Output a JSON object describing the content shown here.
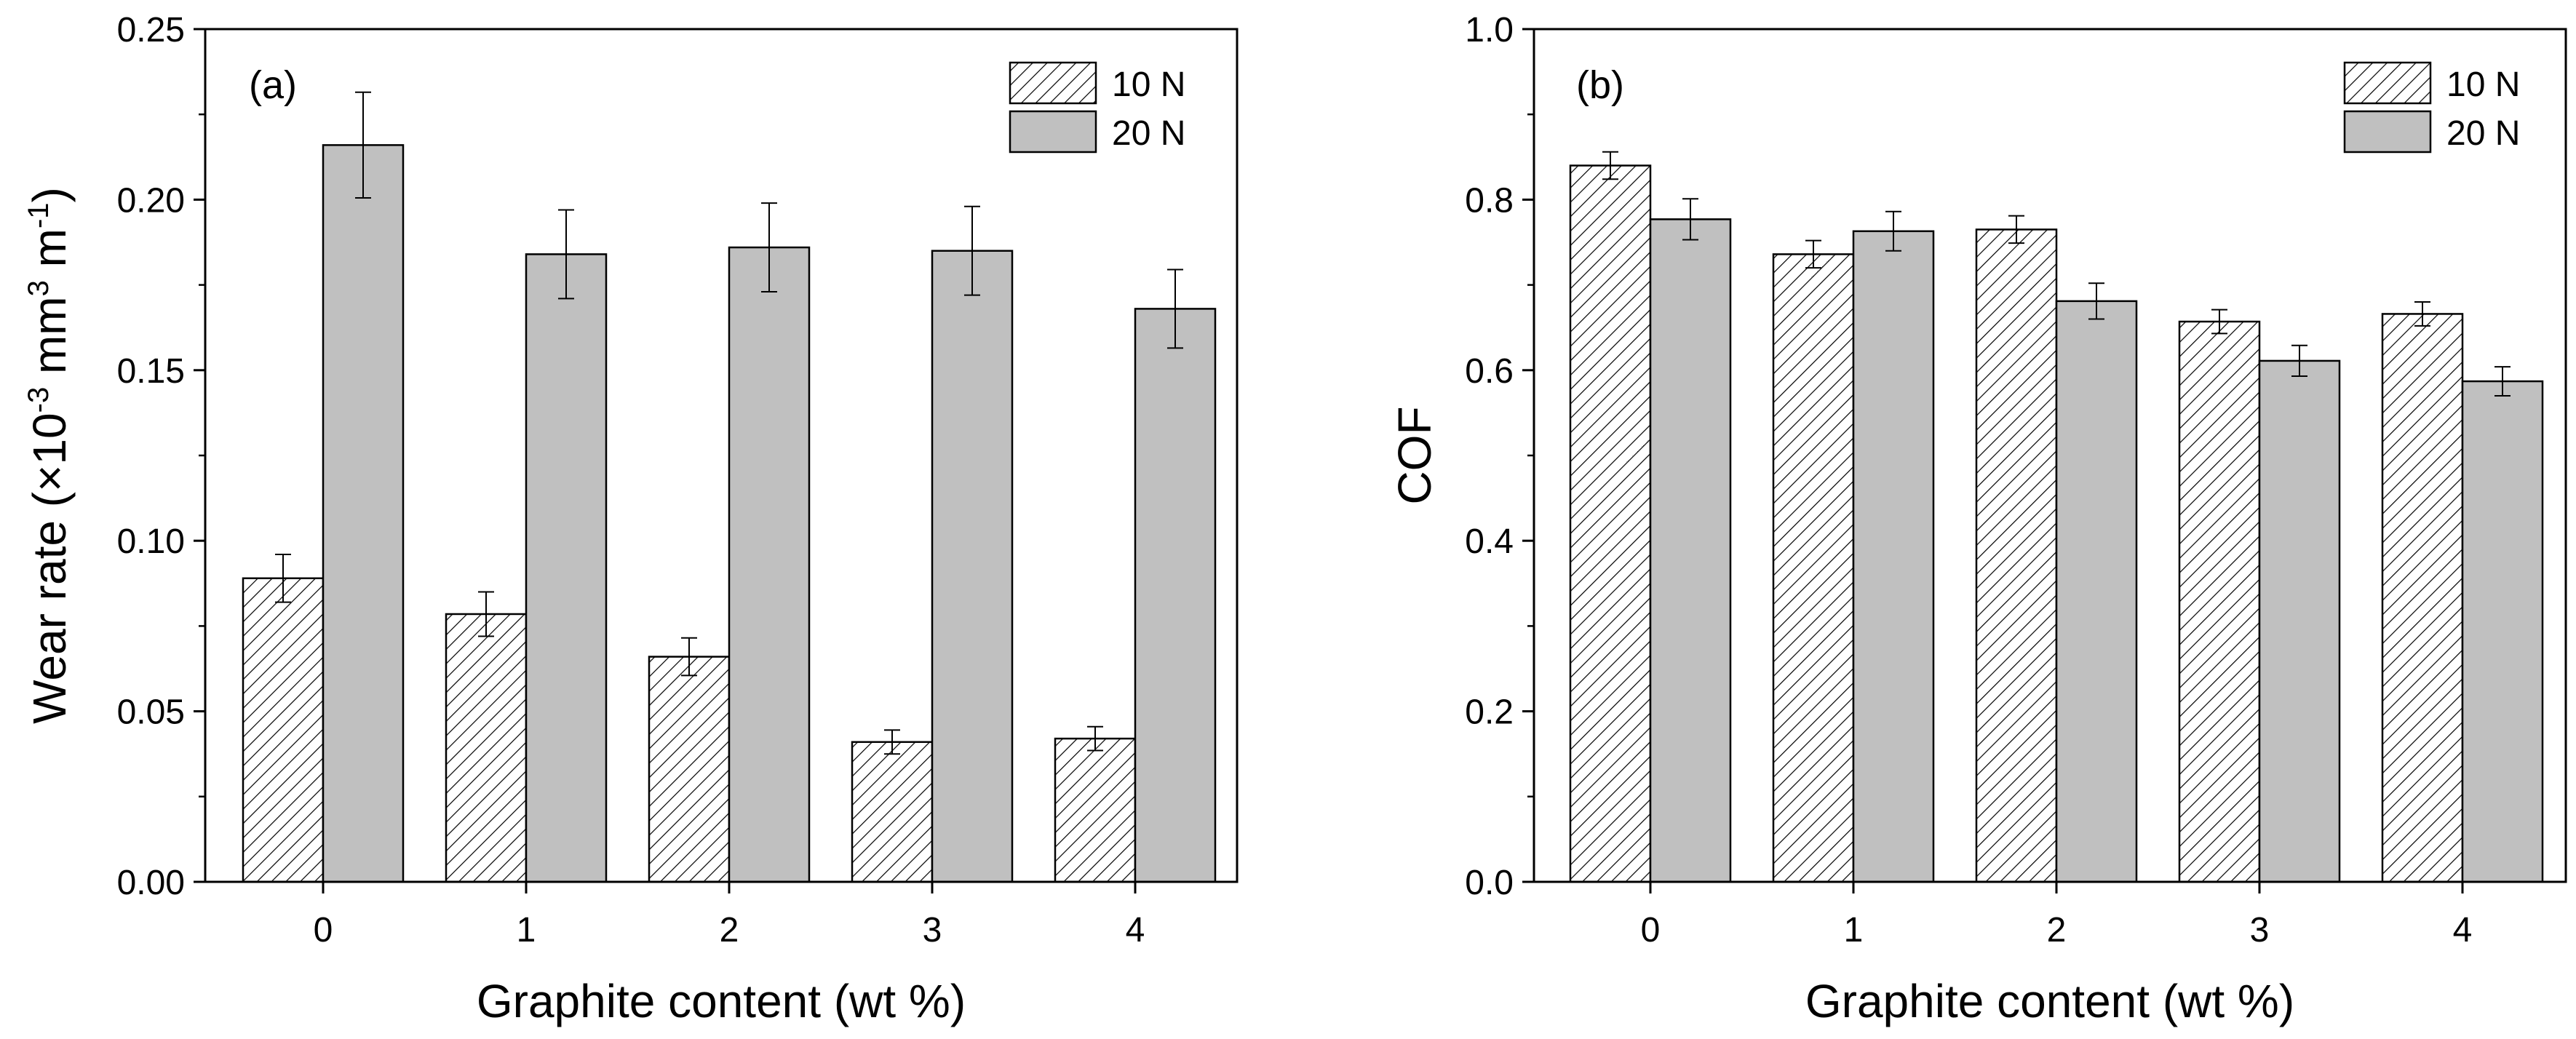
{
  "chart_data": [
    {
      "type": "bar",
      "panel_label": "(a)",
      "categories": [
        "0",
        "1",
        "2",
        "3",
        "4"
      ],
      "series": [
        {
          "name": "10 N",
          "values": [
            0.089,
            0.0785,
            0.066,
            0.041,
            0.042
          ],
          "errors": [
            0.007,
            0.0065,
            0.0055,
            0.0035,
            0.0035
          ],
          "pattern": "hatch"
        },
        {
          "name": "20 N",
          "values": [
            0.216,
            0.184,
            0.186,
            0.185,
            0.168
          ],
          "errors": [
            0.0155,
            0.013,
            0.013,
            0.013,
            0.0115
          ],
          "pattern": "grey"
        }
      ],
      "xlabel": "Graphite content (wt %)",
      "ylabel": {
        "base": "Wear rate (×10",
        "exp1": "-3",
        "mid": " mm",
        "exp2": "3",
        "mid2": " m",
        "exp3": "-1",
        "end": ")"
      },
      "ylim": [
        0,
        0.25
      ],
      "yticks": [
        "0.00",
        "0.05",
        "0.10",
        "0.15",
        "0.20",
        "0.25"
      ],
      "legend": "top-right"
    },
    {
      "type": "bar",
      "panel_label": "(b)",
      "categories": [
        "0",
        "1",
        "2",
        "3",
        "4"
      ],
      "series": [
        {
          "name": "10 N",
          "values": [
            0.84,
            0.736,
            0.765,
            0.657,
            0.666
          ],
          "errors": [
            0.016,
            0.016,
            0.016,
            0.014,
            0.014
          ],
          "pattern": "hatch"
        },
        {
          "name": "20 N",
          "values": [
            0.777,
            0.763,
            0.681,
            0.611,
            0.587
          ],
          "errors": [
            0.024,
            0.023,
            0.021,
            0.018,
            0.017
          ],
          "pattern": "grey"
        }
      ],
      "xlabel": "Graphite content (wt %)",
      "ylabel": "COF",
      "ylim": [
        0,
        1.0
      ],
      "yticks": [
        "0.0",
        "0.2",
        "0.4",
        "0.6",
        "0.8",
        "1.0"
      ],
      "legend": "top-right"
    }
  ],
  "colors": {
    "bar_grey": "#c0c0c0",
    "stroke": "#000000",
    "hatch": "#000000"
  }
}
